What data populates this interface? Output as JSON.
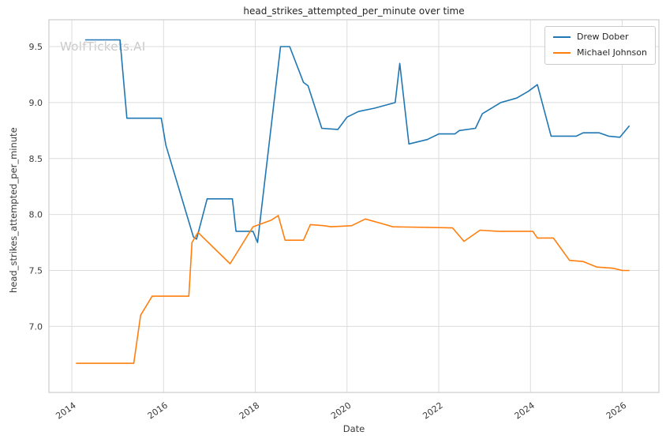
{
  "watermark": "WolfTickets.AI",
  "chart_data": {
    "type": "line",
    "title": "head_strikes_attempted_per_minute over time",
    "xlabel": "Date",
    "ylabel": "head_strikes_attempted_per_minute",
    "xlim": [
      2013.5,
      2026.8
    ],
    "ylim": [
      6.41,
      9.74
    ],
    "x_ticks": [
      2014,
      2016,
      2018,
      2020,
      2022,
      2024,
      2026
    ],
    "y_ticks": [
      7.0,
      7.5,
      8.0,
      8.5,
      9.0,
      9.5
    ],
    "y_tick_labels": [
      "7.0",
      "7.5",
      "8.0",
      "8.5",
      "9.0",
      "9.5"
    ],
    "grid": true,
    "grid_color": "#dcdcdc",
    "border_color": "#cccccc",
    "legend_position": "upper right",
    "series": [
      {
        "name": "Drew Dober",
        "color": "#1f77b4",
        "x": [
          2014.3,
          2015.05,
          2015.2,
          2015.95,
          2016.05,
          2016.65,
          2016.72,
          2016.95,
          2017.5,
          2017.58,
          2017.95,
          2018.05,
          2018.55,
          2018.75,
          2019.05,
          2019.15,
          2019.45,
          2019.8,
          2020.0,
          2020.25,
          2020.6,
          2021.05,
          2021.15,
          2021.35,
          2021.75,
          2022.0,
          2022.35,
          2022.45,
          2022.8,
          2022.95,
          2023.35,
          2023.7,
          2023.95,
          2024.15,
          2024.45,
          2025.0,
          2025.15,
          2025.5,
          2025.7,
          2025.95,
          2026.15
        ],
        "y": [
          9.56,
          9.56,
          8.86,
          8.86,
          8.62,
          7.8,
          7.78,
          8.14,
          8.14,
          7.85,
          7.85,
          7.75,
          9.5,
          9.5,
          9.18,
          9.15,
          8.77,
          8.76,
          8.87,
          8.92,
          8.95,
          9.0,
          9.35,
          8.63,
          8.67,
          8.72,
          8.72,
          8.75,
          8.77,
          8.9,
          9.0,
          9.04,
          9.1,
          9.16,
          8.7,
          8.7,
          8.73,
          8.73,
          8.7,
          8.69,
          8.79
        ]
      },
      {
        "name": "Michael Johnson",
        "color": "#ff7f0e",
        "x": [
          2014.1,
          2015.35,
          2015.5,
          2015.75,
          2016.55,
          2016.62,
          2016.75,
          2017.45,
          2017.95,
          2018.35,
          2018.5,
          2018.65,
          2019.05,
          2019.2,
          2019.5,
          2019.65,
          2020.1,
          2020.4,
          2020.75,
          2021.0,
          2022.3,
          2022.55,
          2022.9,
          2023.3,
          2024.05,
          2024.15,
          2024.5,
          2024.85,
          2025.15,
          2025.45,
          2025.8,
          2026.0,
          2026.15
        ],
        "y": [
          6.67,
          6.67,
          7.1,
          7.27,
          7.27,
          7.75,
          7.84,
          7.56,
          7.89,
          7.95,
          7.99,
          7.77,
          7.77,
          7.91,
          7.9,
          7.89,
          7.9,
          7.96,
          7.92,
          7.89,
          7.88,
          7.76,
          7.86,
          7.85,
          7.85,
          7.79,
          7.79,
          7.59,
          7.58,
          7.53,
          7.52,
          7.5,
          7.5
        ]
      }
    ]
  }
}
